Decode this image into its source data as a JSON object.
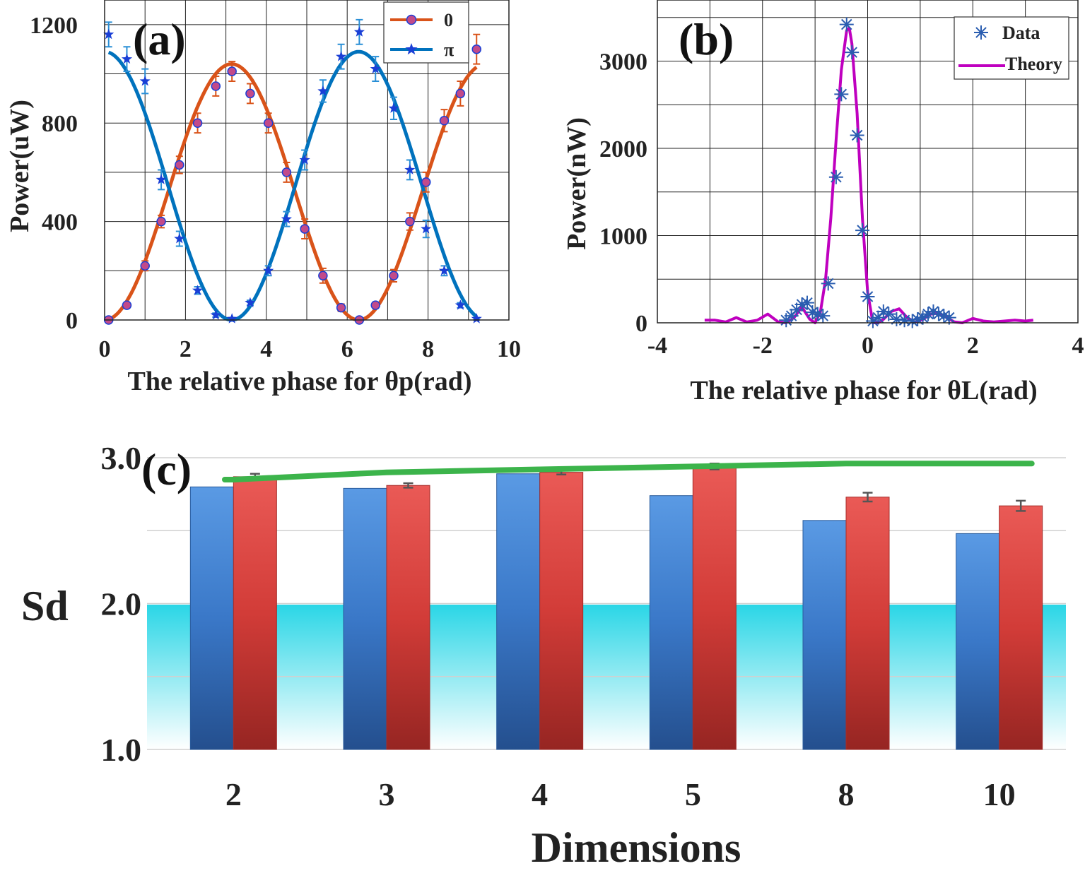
{
  "colors": {
    "orange": "#D95319",
    "blue": "#0072BD",
    "star": "#1a3fd6",
    "magenta": "#BF00BF",
    "data_b": "#2a5db0",
    "bar_blue": "#3a78c8",
    "bar_red": "#d23c38",
    "green": "#3cb44b",
    "cyan": "#2ad6e6"
  },
  "chart_data": [
    {
      "panel": "(a)",
      "type": "scatter",
      "xlabel": "The relative phase for θp(rad)",
      "ylabel": "Power(uW)",
      "xlim": [
        0,
        10
      ],
      "ylim": [
        0,
        1300
      ],
      "xticks": [
        "0",
        "2",
        "4",
        "6",
        "8",
        "10"
      ],
      "yticks": [
        "0",
        "400",
        "800",
        "1200"
      ],
      "grid": true,
      "legend": {
        "placement": "top-right",
        "entries": [
          "0",
          "π"
        ]
      },
      "series": [
        {
          "name": "0",
          "marker": "circle",
          "x": [
            0.1,
            0.55,
            1.0,
            1.4,
            1.85,
            2.3,
            2.75,
            3.15,
            3.6,
            4.05,
            4.5,
            4.95,
            5.4,
            5.85,
            6.3,
            6.7,
            7.15,
            7.55,
            7.95,
            8.4,
            8.8,
            9.2
          ],
          "y": [
            0,
            60,
            220,
            400,
            630,
            800,
            950,
            1010,
            920,
            800,
            600,
            370,
            180,
            50,
            0,
            60,
            180,
            400,
            560,
            810,
            920,
            1100
          ],
          "err": [
            8,
            10,
            20,
            25,
            35,
            40,
            40,
            40,
            40,
            40,
            40,
            40,
            30,
            15,
            8,
            12,
            25,
            35,
            40,
            45,
            50,
            60
          ]
        },
        {
          "name": "π",
          "marker": "star",
          "x": [
            0.1,
            0.55,
            1.0,
            1.4,
            1.85,
            2.3,
            2.75,
            3.15,
            3.6,
            4.05,
            4.5,
            4.95,
            5.4,
            5.85,
            6.3,
            6.7,
            7.15,
            7.55,
            7.95,
            8.4,
            8.8,
            9.2
          ],
          "y": [
            1160,
            1060,
            970,
            570,
            330,
            120,
            20,
            5,
            70,
            200,
            410,
            650,
            930,
            1070,
            1170,
            1020,
            860,
            610,
            370,
            200,
            60,
            5
          ],
          "err": [
            50,
            50,
            50,
            40,
            30,
            15,
            8,
            5,
            10,
            20,
            30,
            40,
            45,
            50,
            50,
            50,
            45,
            40,
            35,
            20,
            10,
            5
          ]
        }
      ],
      "fits": [
        {
          "name": "0",
          "model": "520*(1-cos(x))",
          "amplitude": 520,
          "offset": 520
        },
        {
          "name": "π",
          "model": "545*(1+cos(x))",
          "amplitude": 545,
          "offset": 545
        }
      ]
    },
    {
      "panel": "(b)",
      "type": "scatter",
      "xlabel": "The relative phase for θL(rad)",
      "ylabel": "Power(nW)",
      "xlim": [
        -4,
        4
      ],
      "ylim": [
        0,
        3700
      ],
      "xticks": [
        "-4",
        "-2",
        "0",
        "2",
        "4"
      ],
      "yticks": [
        "0",
        "1000",
        "2000",
        "3000"
      ],
      "grid": true,
      "legend": {
        "placement": "top-right",
        "entries": [
          "Data",
          "Theory"
        ]
      },
      "series": [
        {
          "name": "Data",
          "marker": "asterisk",
          "x": [
            -1.55,
            -1.45,
            -1.35,
            -1.25,
            -1.15,
            -1.05,
            -0.95,
            -0.85,
            -0.75,
            -0.6,
            -0.5,
            -0.4,
            -0.3,
            -0.2,
            -0.1,
            0.0,
            0.1,
            0.2,
            0.3,
            0.4,
            0.55,
            0.7,
            0.85,
            0.95,
            1.05,
            1.15,
            1.25,
            1.35,
            1.45,
            1.55
          ],
          "y": [
            30,
            80,
            150,
            210,
            230,
            120,
            100,
            80,
            450,
            1670,
            2620,
            3420,
            3100,
            2150,
            1060,
            300,
            20,
            60,
            130,
            100,
            40,
            30,
            20,
            40,
            60,
            100,
            130,
            100,
            80,
            60
          ]
        },
        {
          "name": "Theory",
          "type": "line",
          "x": [
            -3.1,
            -2.9,
            -2.7,
            -2.5,
            -2.3,
            -2.1,
            -1.9,
            -1.7,
            -1.55,
            -1.4,
            -1.25,
            -1.1,
            -1.0,
            -0.9,
            -0.8,
            -0.7,
            -0.6,
            -0.5,
            -0.4,
            -0.35,
            -0.3,
            -0.2,
            -0.1,
            0.0,
            0.1,
            0.2,
            0.3,
            0.45,
            0.6,
            0.75,
            0.9,
            1.05,
            1.2,
            1.35,
            1.5,
            1.65,
            1.8,
            2.0,
            2.2,
            2.4,
            2.6,
            2.8,
            3.0,
            3.15
          ],
          "y": [
            30,
            30,
            10,
            60,
            10,
            30,
            100,
            10,
            0,
            60,
            180,
            40,
            0,
            120,
            500,
            1200,
            2100,
            2900,
            3350,
            3380,
            3200,
            2400,
            1200,
            350,
            0,
            0,
            40,
            130,
            160,
            60,
            10,
            40,
            100,
            110,
            60,
            10,
            0,
            50,
            20,
            10,
            20,
            30,
            20,
            30
          ]
        }
      ]
    },
    {
      "panel": "(c)",
      "type": "bar",
      "xlabel": "Dimensions",
      "ylabel": "Sd",
      "categories": [
        "2",
        "3",
        "4",
        "5",
        "8",
        "10"
      ],
      "ylim": [
        1.0,
        3.0
      ],
      "yticks": [
        "1.0",
        "2.0",
        "3.0"
      ],
      "grid": true,
      "classical_bound": 2.0,
      "series": [
        {
          "name": "blue",
          "values": [
            2.8,
            2.79,
            2.89,
            2.74,
            2.57,
            2.48
          ]
        },
        {
          "name": "red",
          "values": [
            2.87,
            2.81,
            2.9,
            2.94,
            2.73,
            2.67
          ],
          "err": [
            0.02,
            0.015,
            0.015,
            0.02,
            0.03,
            0.035
          ]
        },
        {
          "name": "theory",
          "type": "line",
          "values": [
            2.85,
            2.9,
            2.92,
            2.94,
            2.96,
            2.96
          ]
        }
      ]
    }
  ]
}
